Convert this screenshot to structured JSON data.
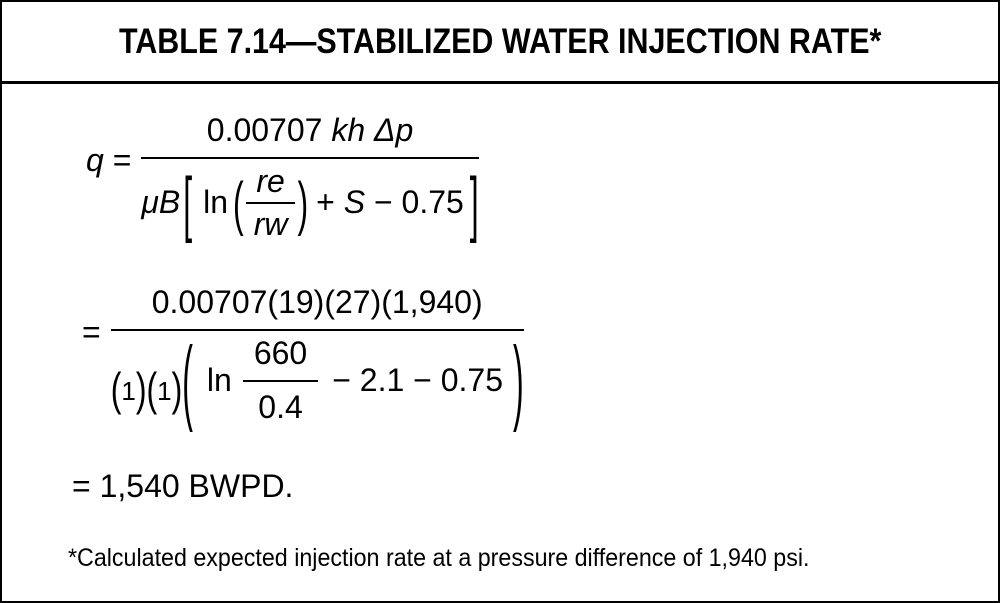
{
  "title": "TABLE 7.14—STABILIZED WATER INJECTION RATE*",
  "colors": {
    "text": "#000000",
    "border": "#000000",
    "background": "#ffffff"
  },
  "eq1": {
    "q": "q",
    "equals": " =",
    "coeff": "0.00707 ",
    "kh": "kh ",
    "dp": "Δp",
    "muB": "μB",
    "lbracket": "[",
    "ln": "ln",
    "lparen": "(",
    "re": "re",
    "rw": "rw",
    "rparen": ")",
    "plus": "+ ",
    "S": "S",
    "minus_tail": " − 0.75",
    "rbracket": "]"
  },
  "eq2": {
    "equals": "=",
    "numerator": "0.00707(19)(27)(1,940)",
    "lparen_one": "(",
    "one": "1",
    "rparen_one": ")",
    "big_lparen": "(",
    "ln": "ln",
    "frac_num": "660",
    "frac_den": "0.4",
    "tail": "− 2.1 − 0.75",
    "big_rparen": ")"
  },
  "eq3": {
    "line": "= 1,540 BWPD."
  },
  "footnote": "*Calculated expected injection rate at a pressure difference of 1,940 psi."
}
